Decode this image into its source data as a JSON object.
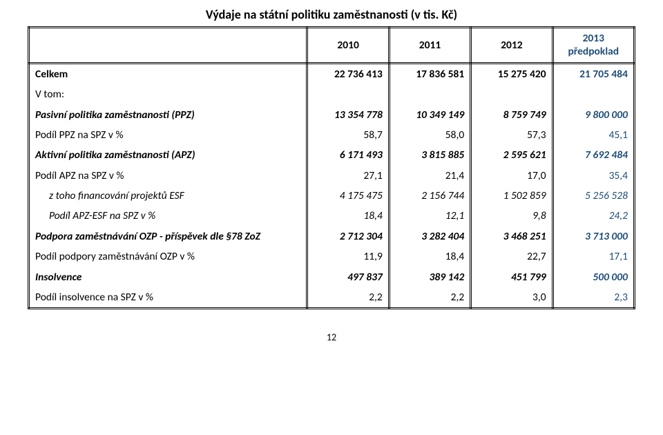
{
  "title": "Výdaje na státní politiku zaměstnanosti (v tis. Kč)",
  "page_number": "12",
  "colors": {
    "text": "#000000",
    "blue": "#1f4e79",
    "border": "#000000",
    "background": "#ffffff"
  },
  "typography": {
    "font_family": "Calibri, Arial, sans-serif",
    "title_fontsize_pt": 13,
    "body_fontsize_pt": 11.5,
    "title_weight": 700
  },
  "table": {
    "type": "table",
    "columns": [
      "",
      "2010",
      "2011",
      "2012",
      "2013 předpoklad"
    ],
    "col_widths_pct": [
      46,
      13.5,
      13.5,
      13.5,
      13.5
    ],
    "last_col_blue": true,
    "rows": [
      {
        "label": "Celkem",
        "vals": [
          "22 736 413",
          "17 836 581",
          "15 275 420",
          "21 705 484"
        ],
        "bold": true,
        "indent": 0
      },
      {
        "label": "V tom:",
        "vals": [
          "",
          "",
          "",
          ""
        ],
        "bold": false,
        "indent": 0
      },
      {
        "label": "Pasivní politika zaměstnanosti (PPZ)",
        "vals": [
          "13 354 778",
          "10 349 149",
          "8 759 749",
          "9 800 000"
        ],
        "bold": true,
        "ital": true,
        "indent": 0
      },
      {
        "label": "Podíl PPZ na SPZ v %",
        "vals": [
          "58,7",
          "58,0",
          "57,3",
          "45,1"
        ],
        "indent": 0
      },
      {
        "label": "Aktivní politika zaměstnanosti (APZ)",
        "vals": [
          "6 171 493",
          "3 815 885",
          "2 595 621",
          "7 692 484"
        ],
        "bold": true,
        "ital": true,
        "indent": 0
      },
      {
        "label": "Podíl APZ na SPZ v %",
        "vals": [
          "27,1",
          "21,4",
          "17,0",
          "35,4"
        ],
        "indent": 0
      },
      {
        "label": "z toho financování projektů ESF",
        "vals": [
          "4 175 475",
          "2 156 744",
          "1 502 859",
          "5 256 528"
        ],
        "ital": true,
        "indent": 1
      },
      {
        "label": "Podíl APZ-ESF na SPZ v %",
        "vals": [
          "18,4",
          "12,1",
          "9,8",
          "24,2"
        ],
        "ital": true,
        "indent": 1
      },
      {
        "label": "Podpora zaměstnávání OZP - příspěvek dle §78 ZoZ",
        "vals": [
          "2 712 304",
          "3 282 404",
          "3 468 251",
          "3 713 000"
        ],
        "bold": true,
        "ital": true,
        "indent": 0
      },
      {
        "label": "Podíl podpory zaměstnávání OZP v %",
        "vals": [
          "11,9",
          "18,4",
          "22,7",
          "17,1"
        ],
        "indent": 0
      },
      {
        "label": "Insolvence",
        "vals": [
          "497 837",
          "389 142",
          "451 799",
          "500 000"
        ],
        "bold": true,
        "ital": true,
        "indent": 0
      },
      {
        "label": "Podíl insolvence na SPZ v %",
        "vals": [
          "2,2",
          "2,2",
          "3,0",
          "2,3"
        ],
        "indent": 0
      }
    ]
  }
}
